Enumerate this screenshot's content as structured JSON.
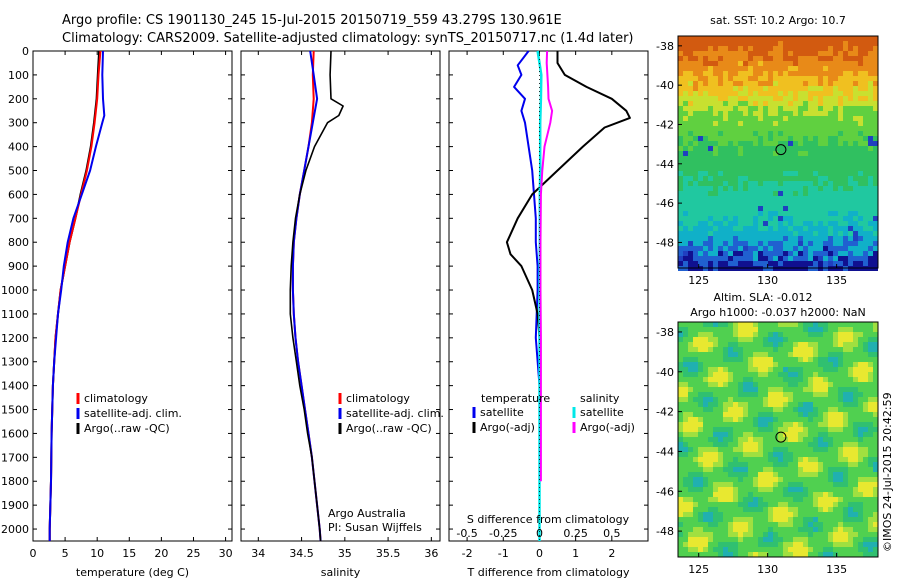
{
  "title_line1": "Argo profile: CS 1901130_245 15-Jul-2015 20150719_559 43.279S 130.961E",
  "title_line2": "Climatology: CARS2009. Satellite-adjusted climatology: synTS_20150717.nc (1.4d later)",
  "credit": "Argo Australia",
  "pi": "PI: Susan Wijffels",
  "timestamp": "©IMOS 24-Jul-2015 20:42:59",
  "colors": {
    "climatology": "#ff0000",
    "satellite": "#0000ee",
    "argo": "#000000",
    "sal_satellite": "#00e8e8",
    "sal_argo": "#ff00ff"
  },
  "chart_data": [
    {
      "type": "line",
      "xlabel": "temperature (deg C)",
      "ylabel": "",
      "xlim": [
        0,
        31
      ],
      "ylim": [
        2050,
        0
      ],
      "xticks": [
        0,
        5,
        10,
        15,
        20,
        25,
        30
      ],
      "yticks": [
        0,
        100,
        200,
        300,
        400,
        500,
        600,
        700,
        800,
        900,
        1000,
        1100,
        1200,
        1300,
        1400,
        1500,
        1600,
        1700,
        1800,
        1900,
        2000
      ],
      "legend": [
        "climatology",
        "satellite-adj. clim.",
        "Argo(..raw -QC)"
      ],
      "series": [
        {
          "name": "climatology",
          "depth": [
            0,
            100,
            200,
            300,
            400,
            500,
            600,
            700,
            800,
            900,
            1000,
            1100,
            1200,
            1300,
            1400,
            1600,
            1800,
            2000,
            2050
          ],
          "values": [
            10.3,
            10.1,
            9.9,
            9.5,
            9.0,
            8.3,
            7.4,
            6.6,
            5.7,
            5.0,
            4.3,
            3.9,
            3.5,
            3.3,
            3.1,
            2.9,
            2.8,
            2.6,
            2.6
          ]
        },
        {
          "name": "satellite-adj. clim.",
          "depth": [
            0,
            100,
            200,
            300,
            400,
            500,
            600,
            700,
            800,
            900,
            1000,
            1100,
            1200,
            1300,
            1400,
            1600,
            1800,
            2000,
            2050
          ],
          "values": [
            10.5,
            10.2,
            10.0,
            9.6,
            9.1,
            8.4,
            7.5,
            6.6,
            5.7,
            5.0,
            4.3,
            3.9,
            3.5,
            3.3,
            3.1,
            2.9,
            2.8,
            2.6,
            2.6
          ]
        },
        {
          "name": "Argo(..raw -QC)",
          "depth": [
            0,
            100,
            200,
            270,
            300,
            400,
            500,
            600,
            700,
            800,
            900,
            1000,
            1100,
            1200,
            1300,
            1400,
            1600,
            1800,
            2000,
            2050
          ],
          "values": [
            10.9,
            10.8,
            10.9,
            11.1,
            10.8,
            9.8,
            8.9,
            7.6,
            6.3,
            5.4,
            4.8,
            4.4,
            3.9,
            3.6,
            3.3,
            3.1,
            2.9,
            2.8,
            2.6,
            2.6
          ]
        }
      ]
    },
    {
      "type": "line",
      "xlabel": "salinity",
      "ylabel": "",
      "xlim": [
        33.8,
        36.1
      ],
      "ylim": [
        2050,
        0
      ],
      "xticks": [
        34,
        34.5,
        35,
        35.5,
        36
      ],
      "legend": [
        "climatology",
        "satellite-adj. clim.",
        "Argo(..raw -QC)"
      ],
      "series": [
        {
          "name": "climatology",
          "depth": [
            0,
            100,
            200,
            300,
            400,
            500,
            600,
            700,
            800,
            900,
            1000,
            1100,
            1200,
            1300,
            1400,
            1500,
            1600,
            1700,
            1800,
            1900,
            2000,
            2050
          ],
          "values": [
            34.64,
            34.63,
            34.64,
            34.62,
            34.58,
            34.53,
            34.48,
            34.44,
            34.41,
            34.4,
            34.4,
            34.41,
            34.43,
            34.46,
            34.5,
            34.54,
            34.58,
            34.62,
            34.65,
            34.68,
            34.71,
            34.72
          ]
        },
        {
          "name": "satellite-adj. clim.",
          "depth": [
            0,
            100,
            200,
            300,
            400,
            500,
            600,
            700,
            800,
            900,
            1000,
            1100,
            1200,
            1300,
            1400,
            1500,
            1600,
            1700,
            1800,
            1900,
            2000,
            2050
          ],
          "values": [
            34.6,
            34.64,
            34.68,
            34.63,
            34.58,
            34.53,
            34.48,
            34.44,
            34.41,
            34.4,
            34.4,
            34.41,
            34.43,
            34.46,
            34.5,
            34.54,
            34.58,
            34.62,
            34.65,
            34.68,
            34.71,
            34.72
          ]
        },
        {
          "name": "Argo(..raw -QC)",
          "depth": [
            0,
            100,
            200,
            230,
            270,
            300,
            400,
            500,
            600,
            700,
            800,
            900,
            1000,
            1100,
            1200,
            1300,
            1400,
            1500,
            1600,
            1700,
            1800,
            1900,
            2000,
            2050
          ],
          "values": [
            34.84,
            34.83,
            34.84,
            34.98,
            34.93,
            34.8,
            34.65,
            34.55,
            34.48,
            34.43,
            34.4,
            34.38,
            34.37,
            34.37,
            34.4,
            34.44,
            34.48,
            34.53,
            34.57,
            34.62,
            34.65,
            34.68,
            34.71,
            34.72
          ]
        }
      ]
    },
    {
      "type": "line",
      "xlabel": "T difference from climatology",
      "x2label": "S difference from climatology",
      "xlim": [
        -2.5,
        3.0
      ],
      "ylim": [
        2050,
        0
      ],
      "xticks": [
        -2,
        -1,
        0,
        1,
        2
      ],
      "x2ticks": [
        "-0.5",
        "-0.25",
        "0",
        "0.25",
        "0.5"
      ],
      "legend_temperature_title": "temperature",
      "legend_salinity_title": "salinity",
      "legend": [
        "satellite",
        "Argo(-adj)",
        "satellite",
        "Argo(-adj)"
      ],
      "series": [
        {
          "name": "satellite",
          "group": "temperature",
          "depth": [
            0,
            60,
            100,
            150,
            200,
            250,
            300,
            400,
            500,
            600,
            700,
            800,
            900,
            1000,
            1200,
            1400,
            1600,
            1800,
            2000,
            2050
          ],
          "values": [
            -0.3,
            -0.6,
            -0.5,
            -0.7,
            -0.4,
            -0.5,
            -0.4,
            -0.3,
            -0.2,
            -0.15,
            -0.1,
            -0.1,
            -0.05,
            -0.05,
            -0.1,
            0,
            0,
            0,
            0,
            0
          ]
        },
        {
          "name": "Argo(-adj)",
          "group": "temperature",
          "depth": [
            0,
            50,
            100,
            150,
            200,
            250,
            280,
            320,
            400,
            500,
            600,
            700,
            800,
            850,
            900,
            1000,
            1100,
            1200,
            1300,
            1400,
            1500,
            1700,
            2000,
            2050
          ],
          "values": [
            0.5,
            0.5,
            0.7,
            1.3,
            2.0,
            2.4,
            2.5,
            1.8,
            1.2,
            0.5,
            -0.2,
            -0.6,
            -0.9,
            -0.8,
            -0.5,
            -0.2,
            -0.05,
            0,
            0,
            0,
            0,
            0,
            0,
            0
          ]
        },
        {
          "name": "satellite",
          "group": "salinity",
          "depth": [
            0,
            50,
            100,
            200,
            300,
            400,
            500,
            600,
            800,
            1000,
            1200,
            1400,
            1600,
            1800,
            2000,
            2050
          ],
          "values": [
            -0.05,
            0.0,
            0.05,
            0.04,
            0.02,
            0.02,
            0.02,
            0.01,
            0.01,
            0.0,
            0.0,
            0.0,
            0.0,
            0.0,
            0.0,
            0.0
          ]
        },
        {
          "name": "Argo(-adj)",
          "group": "salinity",
          "depth": [
            0,
            50,
            100,
            150,
            200,
            250,
            300,
            350,
            400,
            500,
            600,
            800,
            1000,
            1200,
            1400,
            1600,
            1750,
            1800
          ],
          "values": [
            0.21,
            0.2,
            0.22,
            0.24,
            0.25,
            0.35,
            0.3,
            0.22,
            0.14,
            0.08,
            0.04,
            0.03,
            0.03,
            0.04,
            0.04,
            0.04,
            0.04,
            0.04
          ]
        }
      ]
    },
    {
      "type": "heatmap",
      "title": "sat. SST: 10.2  Argo: 10.7",
      "xticks": [
        125,
        130,
        135
      ],
      "yticks": [
        -38,
        -40,
        -42,
        -44,
        -46,
        -48
      ],
      "xlim": [
        123.5,
        138
      ],
      "ylim": [
        -49.3,
        -37.5
      ],
      "marker": {
        "lon": 130.961,
        "lat": -43.279
      }
    },
    {
      "type": "heatmap",
      "title": "Altim. SLA: -0.012",
      "subtitle": "Argo h1000: -0.037 h2000: NaN",
      "xticks": [
        125,
        130,
        135
      ],
      "yticks": [
        -38,
        -40,
        -42,
        -44,
        -46,
        -48
      ],
      "xlim": [
        123.5,
        138
      ],
      "ylim": [
        -49.3,
        -37.5
      ],
      "marker": {
        "lon": 130.961,
        "lat": -43.279
      }
    }
  ]
}
